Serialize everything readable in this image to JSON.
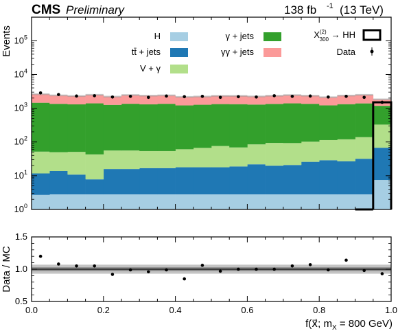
{
  "header": {
    "experiment": "CMS",
    "status": "Preliminary",
    "lumi": "138 fb",
    "lumi_exp": "-1",
    "energy": "(13 TeV)"
  },
  "chart_data": [
    {
      "type": "bar",
      "stacked": true,
      "ylabel": "Events",
      "yscale": "log",
      "ylim": [
        1,
        500000
      ],
      "xlim": [
        0.0,
        1.0
      ],
      "bin_edges": [
        0.0,
        0.05,
        0.1,
        0.15,
        0.2,
        0.25,
        0.3,
        0.35,
        0.4,
        0.45,
        0.5,
        0.55,
        0.6,
        0.65,
        0.7,
        0.75,
        0.8,
        0.85,
        0.9,
        0.95,
        1.0
      ],
      "y_tick_labels": [
        "10^0",
        "10^1",
        "10^2",
        "10^3",
        "10^4",
        "10^5"
      ],
      "series": [
        {
          "name": "H",
          "color": "#a6cee3",
          "values": [
            2.7,
            2.8,
            2.8,
            2.8,
            2.8,
            2.8,
            2.8,
            2.8,
            2.8,
            2.8,
            2.8,
            2.8,
            2.8,
            2.8,
            2.8,
            2.8,
            2.8,
            2.8,
            2.8,
            7.5
          ]
        },
        {
          "name": "tt̄ + jets",
          "color": "#1f78b4",
          "values": [
            9,
            11,
            8,
            5,
            13,
            13,
            14,
            14,
            15,
            15,
            15,
            16,
            19,
            17,
            18,
            23,
            26,
            24,
            29,
            60
          ]
        },
        {
          "name": "V + γ",
          "color": "#b2df8a",
          "values": [
            40,
            36,
            40,
            35,
            40,
            40,
            37,
            37,
            43,
            49,
            58,
            50,
            63,
            74,
            72,
            76,
            85,
            93,
            107,
            260
          ]
        },
        {
          "name": "γ + jets",
          "color": "#33a02c",
          "values": [
            1400,
            1300,
            1250,
            1350,
            1200,
            1300,
            1250,
            1300,
            1150,
            1200,
            1250,
            1250,
            1200,
            1250,
            1300,
            1250,
            1100,
            1200,
            1250,
            850
          ]
        },
        {
          "name": "γγ + jets",
          "color": "#fb9a99",
          "values": [
            1150,
            1050,
            1000,
            1100,
            950,
            1100,
            1050,
            1050,
            950,
            950,
            1000,
            1000,
            950,
            1000,
            1050,
            1000,
            900,
            1050,
            1100,
            650
          ]
        }
      ],
      "data": {
        "name": "Data",
        "values": [
          2850,
          2550,
          2300,
          2350,
          2150,
          2250,
          2100,
          2300,
          2200,
          2250,
          2100,
          2200,
          2150,
          2350,
          2250,
          2300,
          2150,
          2250,
          2100,
          1500
        ]
      },
      "signal": {
        "name": "X₃₀₀⁽²⁾ → HH",
        "label_main": "X",
        "label_sup": "(2)",
        "label_sub": "300",
        "label_tail": " → HH",
        "bins": [
          [
            0.95,
            1.0,
            1500
          ],
          [
            0.9,
            0.95,
            0
          ]
        ]
      }
    },
    {
      "type": "scatter",
      "ylabel": "Data / MC",
      "xlabel": "f(x⃗; m",
      "xlabel_sub": "X",
      "xlabel_tail": " = 800 GeV)",
      "ylim": [
        0.5,
        1.5
      ],
      "xlim": [
        0.0,
        1.0
      ],
      "x_tick_labels": [
        "0.0",
        "0.2",
        "0.4",
        "0.6",
        "0.8",
        "1.0"
      ],
      "y_tick_labels": [
        "0.5",
        "1.0",
        "1.5"
      ],
      "band_outer": 0.07,
      "band_inner": 0.03,
      "x": [
        0.025,
        0.075,
        0.125,
        0.175,
        0.225,
        0.275,
        0.325,
        0.375,
        0.425,
        0.475,
        0.525,
        0.575,
        0.625,
        0.675,
        0.725,
        0.775,
        0.825,
        0.875,
        0.925,
        0.975
      ],
      "y": [
        1.2,
        1.08,
        1.05,
        1.05,
        0.92,
        0.99,
        0.96,
        0.99,
        0.85,
        1.06,
        0.97,
        1.0,
        1.0,
        1.0,
        1.05,
        1.07,
        0.99,
        1.14,
        0.98,
        0.93
      ]
    }
  ]
}
